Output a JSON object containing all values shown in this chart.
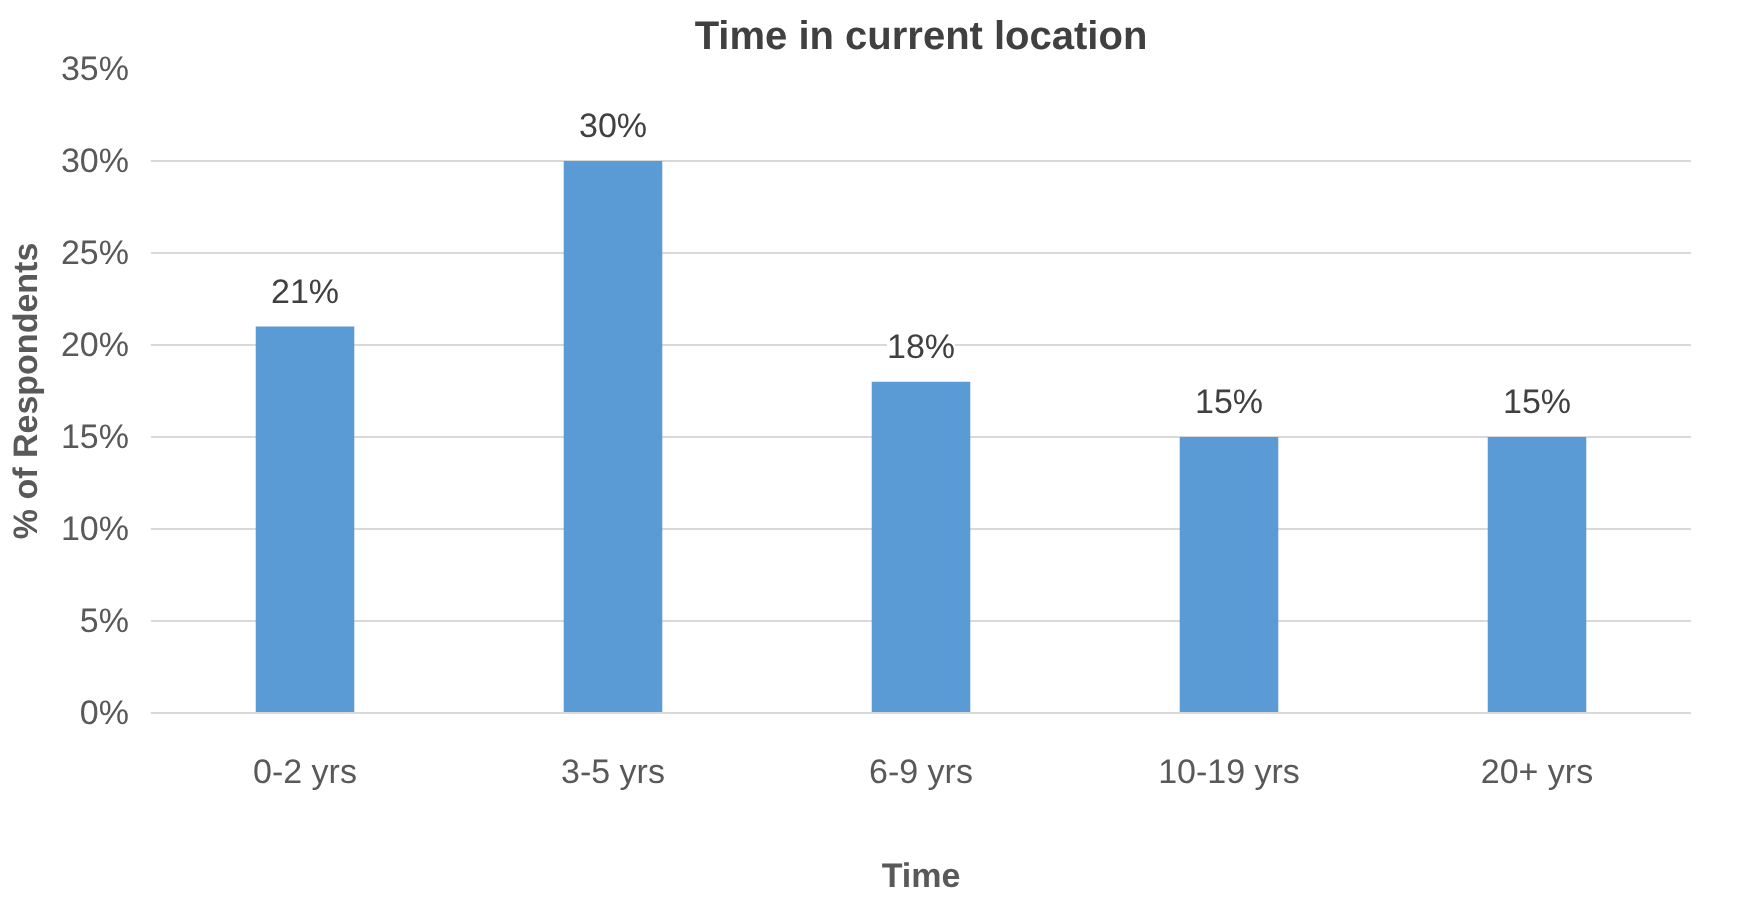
{
  "chart_data": {
    "type": "bar",
    "title": "Time in current location",
    "xlabel": "Time",
    "ylabel": "% of Respondents",
    "categories": [
      "0-2 yrs",
      "3-5 yrs",
      "6-9 yrs",
      "10-19 yrs",
      "20+ yrs"
    ],
    "values": [
      21,
      30,
      18,
      15,
      15
    ],
    "value_labels": [
      "21%",
      "30%",
      "18%",
      "15%",
      "15%"
    ],
    "color": "#5b9bd5",
    "ylim": [
      0,
      35
    ],
    "yticks": [
      {
        "value": 0,
        "label": "0%"
      },
      {
        "value": 5,
        "label": "5%"
      },
      {
        "value": 10,
        "label": "10%"
      },
      {
        "value": 15,
        "label": "15%"
      },
      {
        "value": 20,
        "label": "20%"
      },
      {
        "value": 25,
        "label": "25%"
      },
      {
        "value": 30,
        "label": "30%"
      },
      {
        "value": 35,
        "label": "35%"
      }
    ],
    "grid": "y"
  }
}
